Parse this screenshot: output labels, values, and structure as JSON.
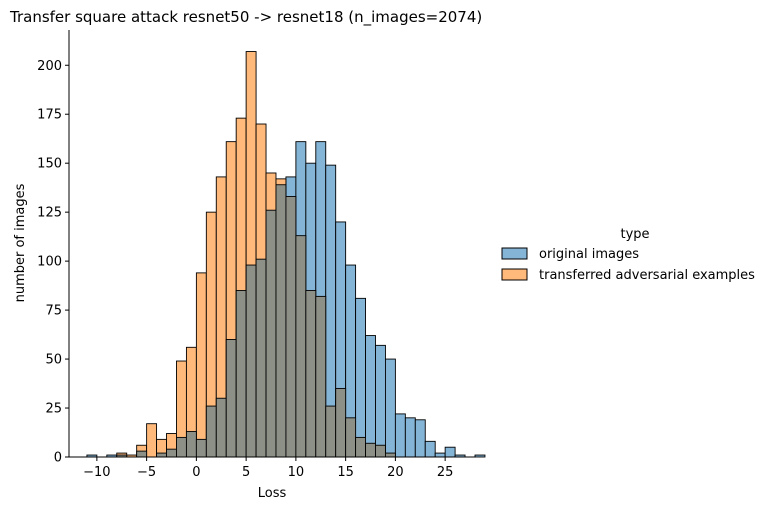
{
  "chart_data": {
    "type": "bar",
    "title": "Transfer square attack resnet50 -> resnet18 (n_images=2074)",
    "xlabel": "Loss",
    "ylabel": "number of images",
    "xlim": [
      -12.8,
      28.1
    ],
    "ylim": [
      0,
      218
    ],
    "xticks": [
      -10,
      -5,
      0,
      5,
      10,
      15,
      20,
      25
    ],
    "yticks": [
      0,
      25,
      50,
      75,
      100,
      125,
      150,
      175,
      200
    ],
    "bin_start": -11,
    "bin_width": 1,
    "grid": false,
    "legend": {
      "title": "type",
      "placement": "right"
    },
    "colors": {
      "original": "#1f77b4",
      "adversarial": "#ff7f0e",
      "overlap": "#8d9087"
    },
    "series": [
      {
        "name": "original images",
        "values": [
          1,
          0,
          1,
          1,
          0,
          3,
          0,
          2,
          4,
          10,
          13,
          9,
          26,
          30,
          60,
          85,
          98,
          101,
          126,
          139,
          143,
          161,
          150,
          161,
          149,
          120,
          98,
          81,
          62,
          57,
          50,
          22,
          20,
          19,
          8,
          2,
          5,
          1,
          0,
          1
        ]
      },
      {
        "name": "transferred adversarial examples",
        "values": [
          0,
          0,
          0,
          2,
          1,
          6,
          17,
          9,
          12,
          49,
          56,
          94,
          125,
          143,
          161,
          173,
          207,
          170,
          145,
          142,
          133,
          113,
          85,
          82,
          26,
          35,
          20,
          10,
          7,
          6,
          2,
          0,
          0,
          0,
          0,
          0,
          0,
          0,
          0,
          0
        ]
      }
    ]
  }
}
